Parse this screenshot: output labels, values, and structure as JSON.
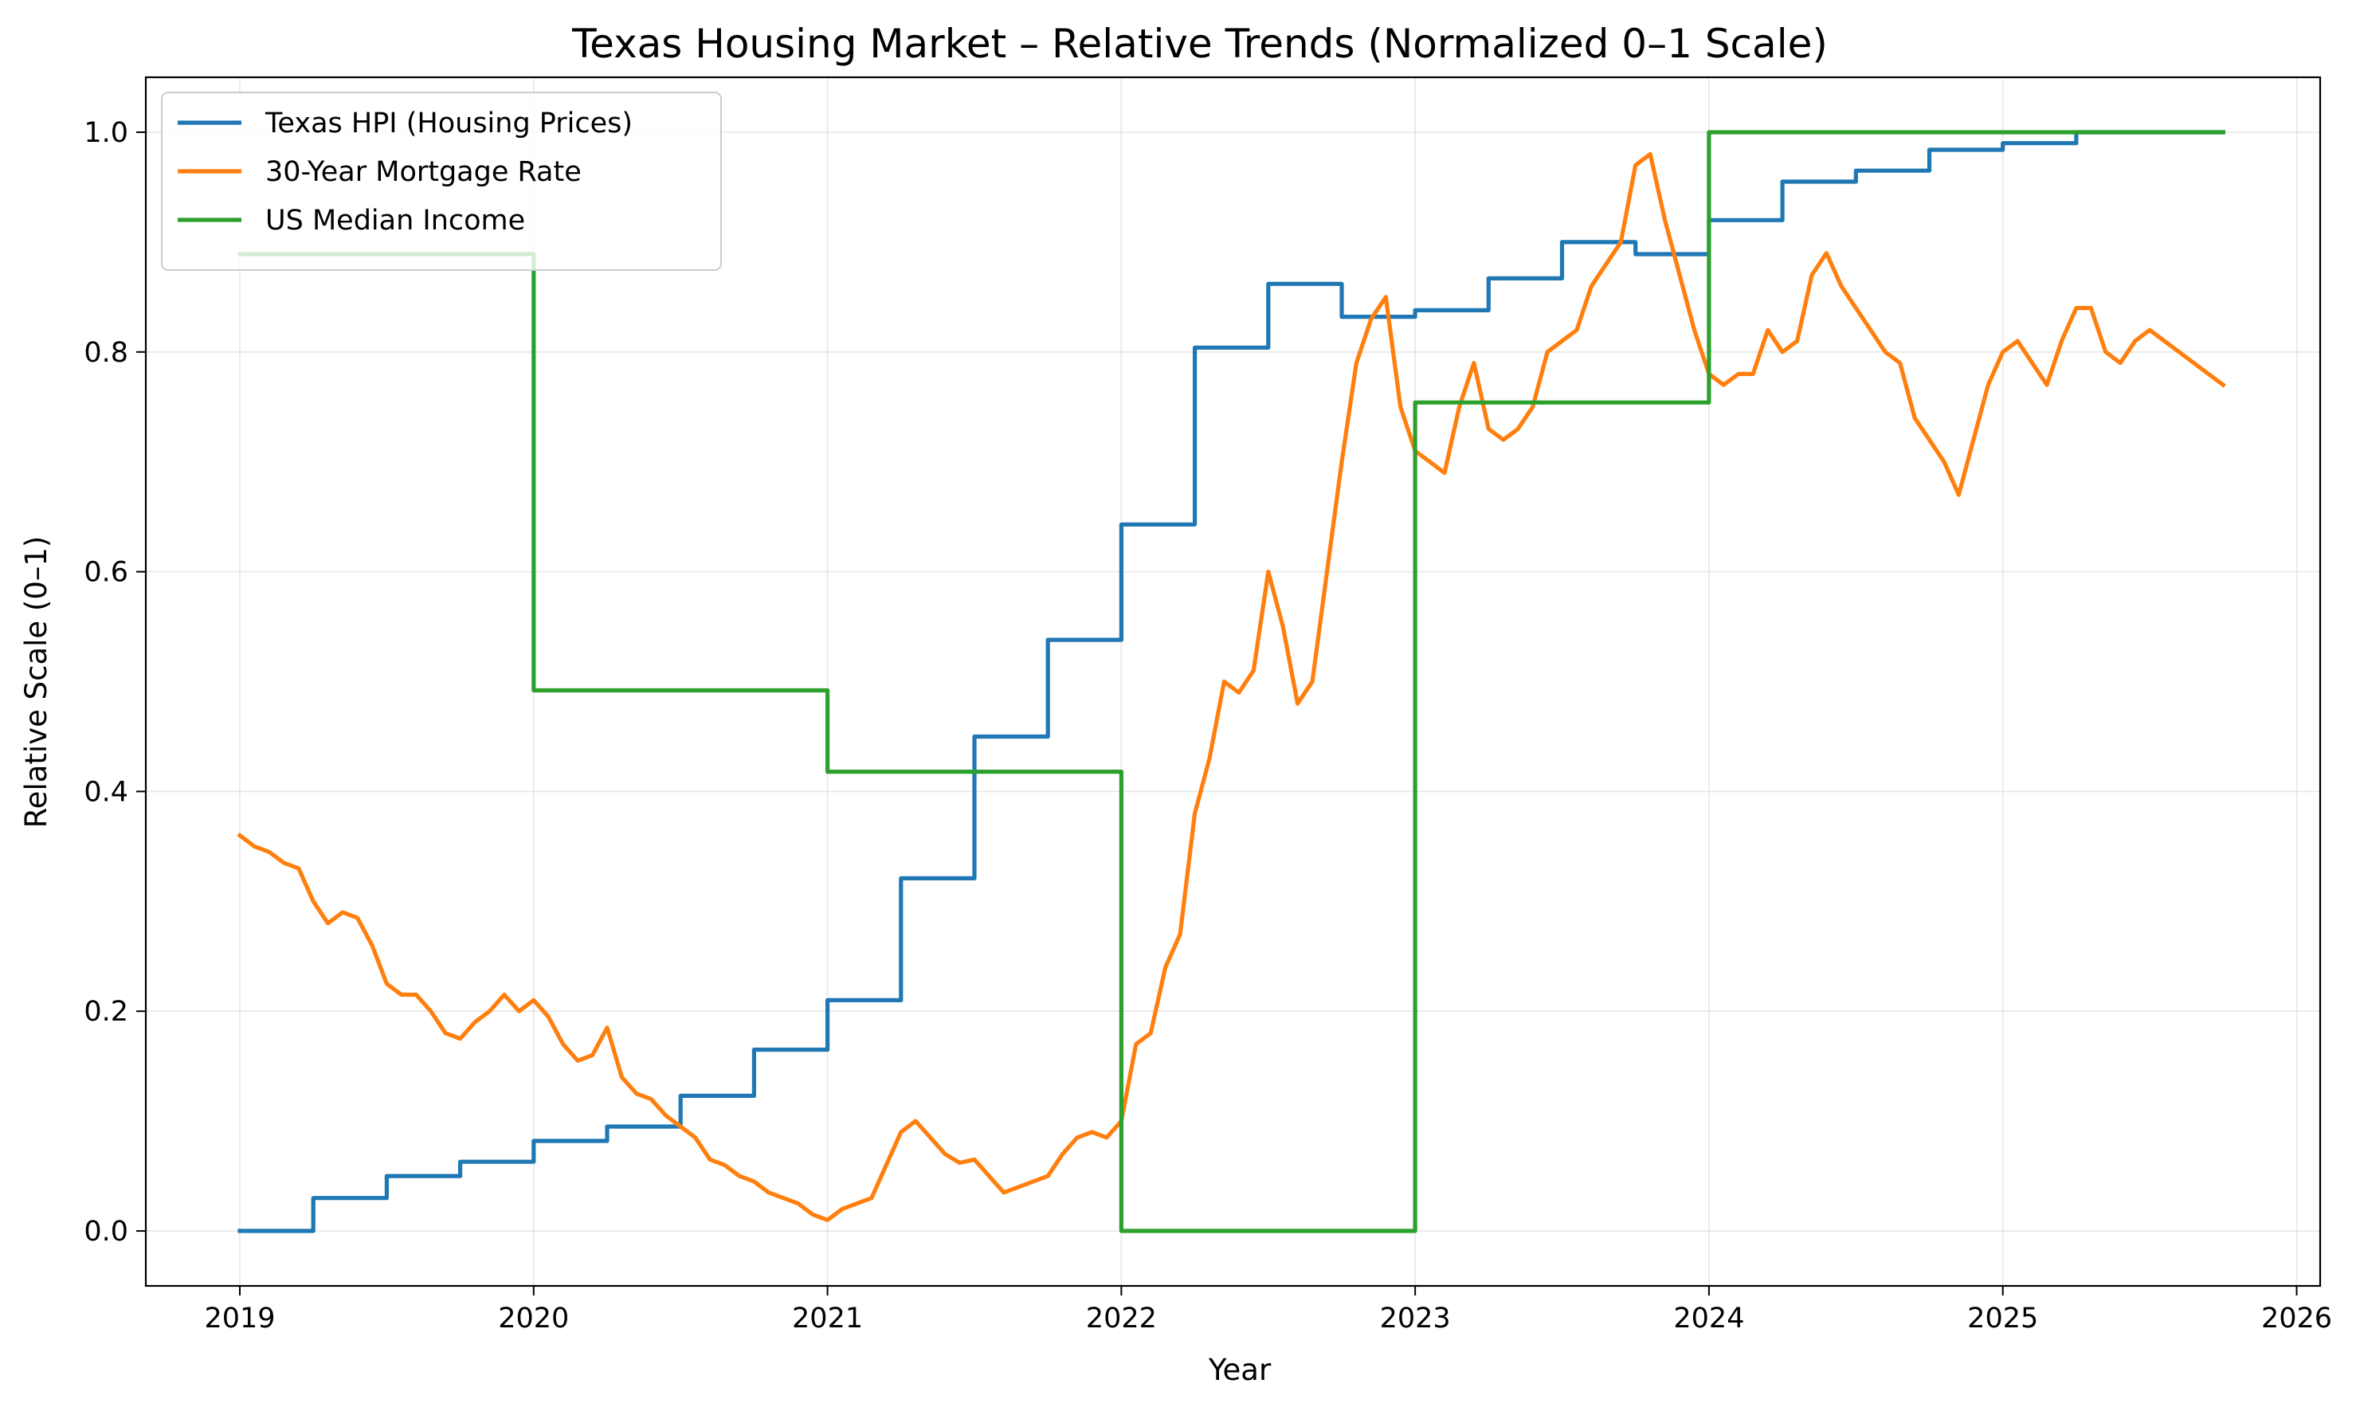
{
  "chart_data": {
    "type": "line",
    "title": "Texas Housing Market – Relative Trends (Normalized 0–1 Scale)",
    "xlabel": "Year",
    "ylabel": "Relative Scale (0–1)",
    "xlim": [
      2018.68,
      2026.08
    ],
    "ylim": [
      -0.05,
      1.05
    ],
    "xticks": [
      2019,
      2020,
      2021,
      2022,
      2023,
      2024,
      2025,
      2026
    ],
    "xtick_labels": [
      "2019",
      "2020",
      "2021",
      "2022",
      "2023",
      "2024",
      "2025",
      "2026"
    ],
    "yticks": [
      0.0,
      0.2,
      0.4,
      0.6,
      0.8,
      1.0
    ],
    "ytick_labels": [
      "0.0",
      "0.2",
      "0.4",
      "0.6",
      "0.8",
      "1.0"
    ],
    "grid": true,
    "legend_position": "top-left",
    "series": [
      {
        "name": "Texas HPI (Housing Prices)",
        "color": "#1f77b4",
        "step": "post",
        "x": [
          2019.0,
          2019.25,
          2019.5,
          2019.75,
          2020.0,
          2020.25,
          2020.5,
          2020.75,
          2021.0,
          2021.25,
          2021.5,
          2021.75,
          2022.0,
          2022.25,
          2022.5,
          2022.75,
          2023.0,
          2023.25,
          2023.5,
          2023.75,
          2024.0,
          2024.25,
          2024.5,
          2024.75,
          2025.0,
          2025.25,
          2025.75
        ],
        "values": [
          0.0,
          0.03,
          0.05,
          0.063,
          0.082,
          0.095,
          0.123,
          0.165,
          0.21,
          0.321,
          0.45,
          0.538,
          0.643,
          0.804,
          0.862,
          0.832,
          0.838,
          0.867,
          0.9,
          0.889,
          0.92,
          0.955,
          0.965,
          0.984,
          0.99,
          1.0,
          1.0
        ]
      },
      {
        "name": "30-Year Mortgage Rate",
        "color": "#ff7f0e",
        "step": "none",
        "x": [
          2019.0,
          2019.05,
          2019.1,
          2019.15,
          2019.2,
          2019.25,
          2019.3,
          2019.35,
          2019.4,
          2019.45,
          2019.5,
          2019.55,
          2019.6,
          2019.65,
          2019.7,
          2019.75,
          2019.8,
          2019.85,
          2019.9,
          2019.95,
          2020.0,
          2020.05,
          2020.1,
          2020.15,
          2020.2,
          2020.25,
          2020.3,
          2020.35,
          2020.4,
          2020.45,
          2020.5,
          2020.55,
          2020.6,
          2020.65,
          2020.7,
          2020.75,
          2020.8,
          2020.85,
          2020.9,
          2020.95,
          2021.0,
          2021.05,
          2021.1,
          2021.15,
          2021.2,
          2021.25,
          2021.3,
          2021.35,
          2021.4,
          2021.45,
          2021.5,
          2021.55,
          2021.6,
          2021.65,
          2021.7,
          2021.75,
          2021.8,
          2021.85,
          2021.9,
          2021.95,
          2022.0,
          2022.05,
          2022.1,
          2022.15,
          2022.2,
          2022.25,
          2022.3,
          2022.35,
          2022.4,
          2022.45,
          2022.5,
          2022.55,
          2022.6,
          2022.65,
          2022.7,
          2022.75,
          2022.8,
          2022.85,
          2022.9,
          2022.95,
          2023.0,
          2023.05,
          2023.1,
          2023.15,
          2023.2,
          2023.25,
          2023.3,
          2023.35,
          2023.4,
          2023.45,
          2023.5,
          2023.55,
          2023.6,
          2023.65,
          2023.7,
          2023.75,
          2023.8,
          2023.85,
          2023.9,
          2023.95,
          2024.0,
          2024.05,
          2024.1,
          2024.15,
          2024.2,
          2024.25,
          2024.3,
          2024.35,
          2024.4,
          2024.45,
          2024.5,
          2024.55,
          2024.6,
          2024.65,
          2024.7,
          2024.75,
          2024.8,
          2024.85,
          2024.9,
          2024.95,
          2025.0,
          2025.05,
          2025.1,
          2025.15,
          2025.2,
          2025.25,
          2025.3,
          2025.35,
          2025.4,
          2025.45,
          2025.5,
          2025.55,
          2025.6,
          2025.65,
          2025.7,
          2025.75
        ],
        "values": [
          0.36,
          0.35,
          0.345,
          0.335,
          0.33,
          0.3,
          0.28,
          0.29,
          0.285,
          0.26,
          0.225,
          0.215,
          0.215,
          0.2,
          0.18,
          0.175,
          0.19,
          0.2,
          0.215,
          0.2,
          0.21,
          0.195,
          0.17,
          0.155,
          0.16,
          0.185,
          0.14,
          0.125,
          0.12,
          0.105,
          0.095,
          0.085,
          0.065,
          0.06,
          0.05,
          0.045,
          0.035,
          0.03,
          0.025,
          0.015,
          0.01,
          0.02,
          0.025,
          0.03,
          0.06,
          0.09,
          0.1,
          0.085,
          0.07,
          0.062,
          0.065,
          0.05,
          0.035,
          0.04,
          0.045,
          0.05,
          0.07,
          0.085,
          0.09,
          0.085,
          0.1,
          0.17,
          0.18,
          0.24,
          0.27,
          0.38,
          0.43,
          0.5,
          0.49,
          0.51,
          0.6,
          0.55,
          0.48,
          0.5,
          0.6,
          0.7,
          0.79,
          0.83,
          0.85,
          0.75,
          0.71,
          0.7,
          0.69,
          0.75,
          0.79,
          0.73,
          0.72,
          0.73,
          0.75,
          0.8,
          0.81,
          0.82,
          0.86,
          0.88,
          0.9,
          0.97,
          0.98,
          0.92,
          0.87,
          0.82,
          0.78,
          0.77,
          0.78,
          0.78,
          0.82,
          0.8,
          0.81,
          0.87,
          0.89,
          0.86,
          0.84,
          0.82,
          0.8,
          0.79,
          0.74,
          0.72,
          0.7,
          0.67,
          0.72,
          0.77,
          0.8,
          0.81,
          0.79,
          0.77,
          0.81,
          0.84,
          0.84,
          0.8,
          0.79,
          0.81,
          0.82,
          0.81,
          0.8,
          0.79,
          0.78,
          0.77
        ]
      },
      {
        "name": "US Median Income",
        "color": "#2ca02c",
        "step": "post",
        "x": [
          2019.0,
          2020.0,
          2021.0,
          2022.0,
          2023.0,
          2024.0,
          2025.0,
          2025.75
        ],
        "values": [
          0.889,
          0.492,
          0.418,
          0.0,
          0.754,
          1.0,
          1.0,
          1.0
        ]
      }
    ]
  }
}
